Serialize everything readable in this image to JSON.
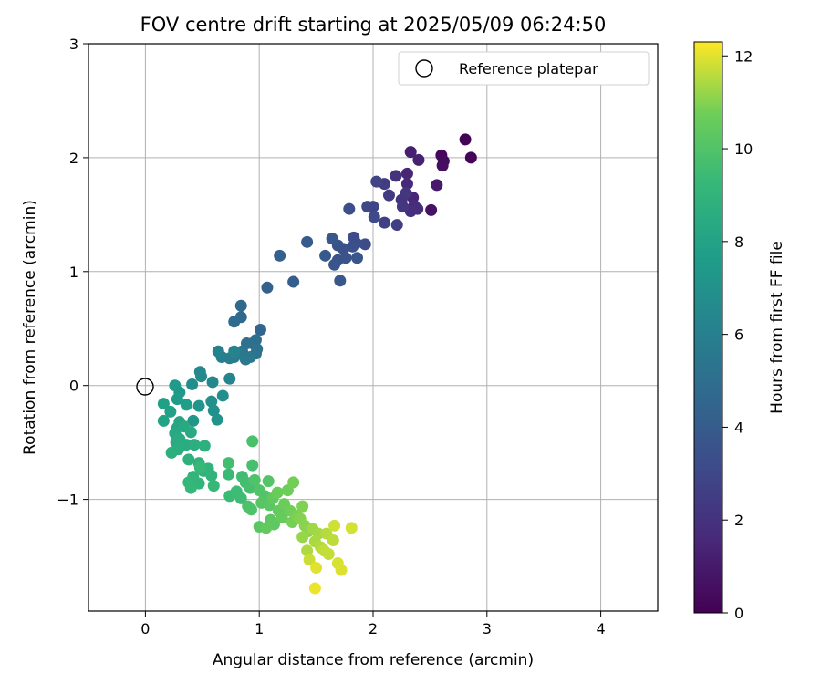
{
  "chart_data": {
    "type": "scatter",
    "title": "FOV centre drift starting at 2025/05/09 06:24:50",
    "xlabel": "Angular distance from reference (arcmin)",
    "ylabel": "Rotation from reference (arcmin)",
    "xlim": [
      -0.5,
      4.5
    ],
    "ylim": [
      -1.98,
      3.0
    ],
    "xticks": [
      0,
      1,
      2,
      3,
      4
    ],
    "yticks": [
      -1,
      0,
      1,
      2,
      3
    ],
    "xtick_labels": [
      "0",
      "1",
      "2",
      "3",
      "4"
    ],
    "ytick_labels": [
      "−1",
      "0",
      "1",
      "2",
      "3"
    ],
    "grid": true,
    "legend": {
      "placement": "top-right",
      "entries": [
        "Reference platepar"
      ]
    },
    "reference_point": {
      "name": "Reference platepar",
      "x": 0,
      "y": 0
    },
    "colorbar": {
      "label": "Hours from first FF file",
      "colormap": "viridis",
      "range": [
        0,
        12.3
      ],
      "ticks": [
        0,
        2,
        4,
        6,
        8,
        10,
        12
      ],
      "tick_labels": [
        "0",
        "2",
        "4",
        "6",
        "8",
        "10",
        "12"
      ]
    },
    "points": [
      {
        "x": 2.81,
        "y": 2.16,
        "c": 0.1
      },
      {
        "x": 2.86,
        "y": 2.0,
        "c": 0.2
      },
      {
        "x": 2.6,
        "y": 2.02,
        "c": 0.3
      },
      {
        "x": 2.62,
        "y": 1.97,
        "c": 0.4
      },
      {
        "x": 2.61,
        "y": 1.93,
        "c": 0.5
      },
      {
        "x": 2.51,
        "y": 1.54,
        "c": 0.7
      },
      {
        "x": 2.56,
        "y": 1.76,
        "c": 1.0
      },
      {
        "x": 2.33,
        "y": 2.05,
        "c": 1.2
      },
      {
        "x": 2.4,
        "y": 1.98,
        "c": 1.3
      },
      {
        "x": 2.3,
        "y": 1.86,
        "c": 1.4
      },
      {
        "x": 2.35,
        "y": 1.65,
        "c": 1.5
      },
      {
        "x": 2.3,
        "y": 1.77,
        "c": 1.6
      },
      {
        "x": 2.36,
        "y": 1.58,
        "c": 1.7
      },
      {
        "x": 2.39,
        "y": 1.55,
        "c": 1.8
      },
      {
        "x": 2.33,
        "y": 1.53,
        "c": 1.9
      },
      {
        "x": 2.2,
        "y": 1.84,
        "c": 2.0
      },
      {
        "x": 2.25,
        "y": 1.63,
        "c": 2.1
      },
      {
        "x": 2.29,
        "y": 1.69,
        "c": 2.2
      },
      {
        "x": 2.26,
        "y": 1.57,
        "c": 2.3
      },
      {
        "x": 2.14,
        "y": 1.67,
        "c": 2.4
      },
      {
        "x": 2.1,
        "y": 1.77,
        "c": 2.5
      },
      {
        "x": 2.21,
        "y": 1.41,
        "c": 2.6
      },
      {
        "x": 2.1,
        "y": 1.43,
        "c": 2.7
      },
      {
        "x": 2.03,
        "y": 1.79,
        "c": 2.8
      },
      {
        "x": 2.0,
        "y": 1.57,
        "c": 2.9
      },
      {
        "x": 1.95,
        "y": 1.57,
        "c": 3.0
      },
      {
        "x": 2.01,
        "y": 1.48,
        "c": 3.1
      },
      {
        "x": 1.93,
        "y": 1.24,
        "c": 3.2
      },
      {
        "x": 1.83,
        "y": 1.3,
        "c": 3.25
      },
      {
        "x": 1.85,
        "y": 1.25,
        "c": 3.3
      },
      {
        "x": 1.79,
        "y": 1.55,
        "c": 3.35
      },
      {
        "x": 1.82,
        "y": 1.22,
        "c": 3.4
      },
      {
        "x": 1.74,
        "y": 1.2,
        "c": 3.45
      },
      {
        "x": 1.69,
        "y": 1.23,
        "c": 3.5
      },
      {
        "x": 1.76,
        "y": 1.12,
        "c": 3.55
      },
      {
        "x": 1.69,
        "y": 1.1,
        "c": 3.6
      },
      {
        "x": 1.66,
        "y": 1.06,
        "c": 3.65
      },
      {
        "x": 1.86,
        "y": 1.12,
        "c": 3.7
      },
      {
        "x": 1.71,
        "y": 0.92,
        "c": 3.75
      },
      {
        "x": 1.64,
        "y": 1.29,
        "c": 3.8
      },
      {
        "x": 1.58,
        "y": 1.14,
        "c": 3.9
      },
      {
        "x": 1.42,
        "y": 1.26,
        "c": 4.0
      },
      {
        "x": 1.3,
        "y": 0.91,
        "c": 4.1
      },
      {
        "x": 1.18,
        "y": 1.14,
        "c": 4.2
      },
      {
        "x": 1.07,
        "y": 0.86,
        "c": 4.3
      },
      {
        "x": 1.01,
        "y": 0.49,
        "c": 4.5
      },
      {
        "x": 0.84,
        "y": 0.7,
        "c": 4.6
      },
      {
        "x": 0.84,
        "y": 0.6,
        "c": 4.7
      },
      {
        "x": 0.78,
        "y": 0.56,
        "c": 4.8
      },
      {
        "x": 0.94,
        "y": 0.37,
        "c": 4.9
      },
      {
        "x": 0.97,
        "y": 0.4,
        "c": 5.0
      },
      {
        "x": 0.89,
        "y": 0.37,
        "c": 5.1
      },
      {
        "x": 0.98,
        "y": 0.32,
        "c": 5.2
      },
      {
        "x": 0.97,
        "y": 0.28,
        "c": 5.3
      },
      {
        "x": 0.85,
        "y": 0.3,
        "c": 5.4
      },
      {
        "x": 0.92,
        "y": 0.25,
        "c": 5.5
      },
      {
        "x": 0.88,
        "y": 0.23,
        "c": 5.6
      },
      {
        "x": 0.81,
        "y": 0.28,
        "c": 5.7
      },
      {
        "x": 0.78,
        "y": 0.25,
        "c": 5.8
      },
      {
        "x": 0.74,
        "y": 0.24,
        "c": 5.9
      },
      {
        "x": 0.67,
        "y": 0.25,
        "c": 6.0
      },
      {
        "x": 0.64,
        "y": 0.3,
        "c": 6.1
      },
      {
        "x": 0.78,
        "y": 0.3,
        "c": 6.2
      },
      {
        "x": 0.74,
        "y": 0.06,
        "c": 6.3
      },
      {
        "x": 0.59,
        "y": 0.03,
        "c": 6.4
      },
      {
        "x": 0.48,
        "y": 0.12,
        "c": 6.5
      },
      {
        "x": 0.49,
        "y": 0.08,
        "c": 6.6
      },
      {
        "x": 0.41,
        "y": 0.01,
        "c": 6.7
      },
      {
        "x": 0.68,
        "y": -0.09,
        "c": 6.8
      },
      {
        "x": 0.58,
        "y": -0.14,
        "c": 6.9
      },
      {
        "x": 0.6,
        "y": -0.22,
        "c": 7.0
      },
      {
        "x": 0.63,
        "y": -0.3,
        "c": 7.1
      },
      {
        "x": 0.47,
        "y": -0.18,
        "c": 7.2
      },
      {
        "x": 0.42,
        "y": -0.31,
        "c": 7.3
      },
      {
        "x": 0.3,
        "y": -0.06,
        "c": 7.4
      },
      {
        "x": 0.26,
        "y": 0.0,
        "c": 7.5
      },
      {
        "x": 0.28,
        "y": -0.12,
        "c": 7.6
      },
      {
        "x": 0.36,
        "y": -0.17,
        "c": 7.7
      },
      {
        "x": 0.16,
        "y": -0.16,
        "c": 7.8
      },
      {
        "x": 0.22,
        "y": -0.23,
        "c": 7.9
      },
      {
        "x": 0.16,
        "y": -0.31,
        "c": 8.0
      },
      {
        "x": 0.3,
        "y": -0.32,
        "c": 8.1
      },
      {
        "x": 0.28,
        "y": -0.37,
        "c": 8.2
      },
      {
        "x": 0.26,
        "y": -0.42,
        "c": 8.3
      },
      {
        "x": 0.34,
        "y": -0.36,
        "c": 8.35
      },
      {
        "x": 0.4,
        "y": -0.41,
        "c": 8.4
      },
      {
        "x": 0.3,
        "y": -0.47,
        "c": 8.45
      },
      {
        "x": 0.27,
        "y": -0.5,
        "c": 8.5
      },
      {
        "x": 0.36,
        "y": -0.52,
        "c": 8.55
      },
      {
        "x": 0.29,
        "y": -0.56,
        "c": 8.6
      },
      {
        "x": 0.23,
        "y": -0.59,
        "c": 8.65
      },
      {
        "x": 0.43,
        "y": -0.52,
        "c": 8.7
      },
      {
        "x": 0.52,
        "y": -0.53,
        "c": 8.75
      },
      {
        "x": 0.38,
        "y": -0.65,
        "c": 8.8
      },
      {
        "x": 0.47,
        "y": -0.68,
        "c": 8.85
      },
      {
        "x": 0.51,
        "y": -0.75,
        "c": 8.9
      },
      {
        "x": 0.55,
        "y": -0.73,
        "c": 8.95
      },
      {
        "x": 0.58,
        "y": -0.79,
        "c": 9.0
      },
      {
        "x": 0.42,
        "y": -0.8,
        "c": 9.05
      },
      {
        "x": 0.47,
        "y": -0.86,
        "c": 9.1
      },
      {
        "x": 0.38,
        "y": -0.85,
        "c": 9.15
      },
      {
        "x": 0.4,
        "y": -0.9,
        "c": 9.2
      },
      {
        "x": 0.6,
        "y": -0.88,
        "c": 9.25
      },
      {
        "x": 0.48,
        "y": -0.72,
        "c": 9.3
      },
      {
        "x": 0.73,
        "y": -0.78,
        "c": 9.35
      },
      {
        "x": 0.74,
        "y": -0.97,
        "c": 9.4
      },
      {
        "x": 0.8,
        "y": -0.93,
        "c": 9.45
      },
      {
        "x": 0.84,
        "y": -0.99,
        "c": 9.5
      },
      {
        "x": 0.85,
        "y": -0.8,
        "c": 9.55
      },
      {
        "x": 0.73,
        "y": -0.68,
        "c": 9.6
      },
      {
        "x": 0.88,
        "y": -0.85,
        "c": 9.65
      },
      {
        "x": 0.92,
        "y": -0.9,
        "c": 9.7
      },
      {
        "x": 0.94,
        "y": -0.7,
        "c": 9.75
      },
      {
        "x": 0.94,
        "y": -0.49,
        "c": 9.8
      },
      {
        "x": 0.9,
        "y": -1.06,
        "c": 9.85
      },
      {
        "x": 0.93,
        "y": -1.09,
        "c": 9.9
      },
      {
        "x": 0.96,
        "y": -0.83,
        "c": 9.95
      },
      {
        "x": 1.0,
        "y": -0.92,
        "c": 10.0
      },
      {
        "x": 1.05,
        "y": -0.97,
        "c": 10.05
      },
      {
        "x": 1.08,
        "y": -0.84,
        "c": 10.1
      },
      {
        "x": 1.02,
        "y": -1.03,
        "c": 10.15
      },
      {
        "x": 1.0,
        "y": -1.24,
        "c": 10.2
      },
      {
        "x": 1.09,
        "y": -1.05,
        "c": 10.25
      },
      {
        "x": 1.1,
        "y": -1.18,
        "c": 10.3
      },
      {
        "x": 1.13,
        "y": -1.22,
        "c": 10.35
      },
      {
        "x": 1.06,
        "y": -1.25,
        "c": 10.4
      },
      {
        "x": 1.12,
        "y": -0.99,
        "c": 10.45
      },
      {
        "x": 1.17,
        "y": -1.1,
        "c": 10.5
      },
      {
        "x": 1.2,
        "y": -1.16,
        "c": 10.55
      },
      {
        "x": 1.16,
        "y": -0.94,
        "c": 10.6
      },
      {
        "x": 1.22,
        "y": -1.04,
        "c": 10.65
      },
      {
        "x": 1.25,
        "y": -0.92,
        "c": 10.7
      },
      {
        "x": 1.27,
        "y": -1.1,
        "c": 10.75
      },
      {
        "x": 1.3,
        "y": -0.85,
        "c": 10.8
      },
      {
        "x": 1.29,
        "y": -1.2,
        "c": 10.85
      },
      {
        "x": 1.33,
        "y": -1.14,
        "c": 10.9
      },
      {
        "x": 1.38,
        "y": -1.06,
        "c": 10.95
      },
      {
        "x": 1.36,
        "y": -1.17,
        "c": 11.0
      },
      {
        "x": 1.4,
        "y": -1.23,
        "c": 11.05
      },
      {
        "x": 1.43,
        "y": -1.28,
        "c": 11.1
      },
      {
        "x": 1.38,
        "y": -1.33,
        "c": 11.2
      },
      {
        "x": 1.47,
        "y": -1.26,
        "c": 11.3
      },
      {
        "x": 1.52,
        "y": -1.3,
        "c": 11.35
      },
      {
        "x": 1.49,
        "y": -1.37,
        "c": 11.4
      },
      {
        "x": 1.42,
        "y": -1.45,
        "c": 11.45
      },
      {
        "x": 1.54,
        "y": -1.42,
        "c": 11.5
      },
      {
        "x": 1.59,
        "y": -1.3,
        "c": 11.55
      },
      {
        "x": 1.65,
        "y": -1.36,
        "c": 11.6
      },
      {
        "x": 1.57,
        "y": -1.45,
        "c": 11.65
      },
      {
        "x": 1.61,
        "y": -1.48,
        "c": 11.7
      },
      {
        "x": 1.44,
        "y": -1.53,
        "c": 11.75
      },
      {
        "x": 1.66,
        "y": -1.23,
        "c": 11.8
      },
      {
        "x": 1.81,
        "y": -1.25,
        "c": 11.85
      },
      {
        "x": 1.69,
        "y": -1.56,
        "c": 11.9
      },
      {
        "x": 1.72,
        "y": -1.62,
        "c": 11.95
      },
      {
        "x": 1.5,
        "y": -1.6,
        "c": 12.0
      },
      {
        "x": 1.49,
        "y": -1.78,
        "c": 12.1
      }
    ]
  }
}
